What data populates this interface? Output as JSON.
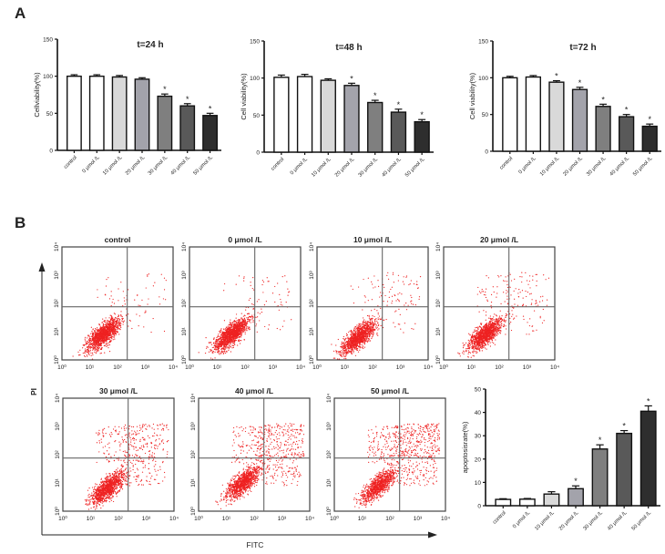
{
  "panel_labels": {
    "a": "A",
    "b": "B"
  },
  "chart_data": [
    {
      "type": "bar",
      "id": "viability-24h",
      "title": "t=24 h",
      "ylabel": "Cellviability(%)",
      "ylim": [
        0,
        150
      ],
      "yticks": [
        0,
        50,
        100,
        150
      ],
      "categories": [
        "control",
        "0 μmol /L",
        "10 μmol /L",
        "20 μmol /L",
        "30 μmol /L",
        "40 μmol /L",
        "50 μmol /L"
      ],
      "values": [
        100,
        100,
        99,
        96,
        73,
        60,
        47
      ],
      "errors": [
        2,
        2,
        2,
        2,
        3,
        3,
        3
      ],
      "significant": [
        false,
        false,
        false,
        false,
        true,
        true,
        true
      ],
      "colors": [
        "#ffffff",
        "#ffffff",
        "#d9d9d9",
        "#a3a3ab",
        "#7f7f7f",
        "#595959",
        "#2e2e2e"
      ]
    },
    {
      "type": "bar",
      "id": "viability-48h",
      "title": "t=48 h",
      "ylabel": "Cell viability(%)",
      "ylim": [
        0,
        150
      ],
      "yticks": [
        0,
        50,
        100,
        150
      ],
      "categories": [
        "control",
        "0 μmol /L",
        "10 μmol /L",
        "20 μmol /L",
        "30 μmol /L",
        "40 μmol /L",
        "50 μmol /L"
      ],
      "values": [
        101,
        102,
        97,
        90,
        67,
        54,
        41
      ],
      "errors": [
        3,
        3,
        2,
        3,
        3,
        4,
        3
      ],
      "significant": [
        false,
        false,
        false,
        true,
        true,
        true,
        true
      ],
      "colors": [
        "#ffffff",
        "#ffffff",
        "#d9d9d9",
        "#a3a3ab",
        "#7f7f7f",
        "#595959",
        "#2e2e2e"
      ]
    },
    {
      "type": "bar",
      "id": "viability-72h",
      "title": "t=72 h",
      "ylabel": "Cell viability(%)",
      "ylim": [
        0,
        150
      ],
      "yticks": [
        0,
        50,
        100,
        150
      ],
      "categories": [
        "control",
        "0 μmol /L",
        "10 μmol /L",
        "20 μmol /L",
        "30 μmol /L",
        "40 μmol /L",
        "50 μmol /L"
      ],
      "values": [
        100,
        101,
        94,
        84,
        61,
        47,
        34
      ],
      "errors": [
        2,
        2,
        2,
        3,
        3,
        3,
        3
      ],
      "significant": [
        false,
        false,
        true,
        true,
        true,
        true,
        true
      ],
      "colors": [
        "#ffffff",
        "#ffffff",
        "#d9d9d9",
        "#a3a3ab",
        "#7f7f7f",
        "#595959",
        "#2e2e2e"
      ]
    },
    {
      "type": "bar",
      "id": "apoptosis-rate",
      "title": "",
      "ylabel": "apoptosisrate(%)",
      "ylim": [
        0,
        50
      ],
      "yticks": [
        0,
        10,
        20,
        30,
        40,
        50
      ],
      "categories": [
        "control",
        "0 μmol /L",
        "10 μmol /L",
        "20 μmol /L",
        "30 μmol /L",
        "40 μmol /L",
        "50 μmol /L"
      ],
      "values": [
        2.7,
        2.8,
        5.0,
        7.3,
        24.3,
        31.0,
        40.5
      ],
      "errors": [
        0.3,
        0.3,
        1.0,
        1.2,
        1.8,
        1.2,
        2.3
      ],
      "significant": [
        false,
        false,
        false,
        true,
        true,
        true,
        true
      ],
      "colors": [
        "#ffffff",
        "#ffffff",
        "#d9d9d9",
        "#a3a3ab",
        "#7f7f7f",
        "#595959",
        "#2e2e2e"
      ]
    },
    {
      "type": "scatter",
      "id": "flow-cytometry",
      "xlabel": "FITC",
      "ylabel": "PI",
      "xlim_log10": [
        0,
        4
      ],
      "ylim_log10": [
        0,
        4
      ],
      "tick_labels": [
        "10⁰",
        "10¹",
        "10²",
        "10³",
        "10⁴"
      ],
      "quadrant_gate_log10": {
        "x": 2.35,
        "y": 1.88
      },
      "point_color": "#ee2222",
      "panels": [
        {
          "title": "control",
          "cluster_center": [
            1.5,
            0.9
          ],
          "cluster_points": 1400,
          "scattered_points": 60
        },
        {
          "title": "0 μmol /L",
          "cluster_center": [
            1.5,
            0.9
          ],
          "cluster_points": 1400,
          "scattered_points": 70
        },
        {
          "title": "10 μmol /L",
          "cluster_center": [
            1.5,
            0.8
          ],
          "cluster_points": 1300,
          "scattered_points": 110
        },
        {
          "title": "20 μmol /L",
          "cluster_center": [
            1.5,
            0.9
          ],
          "cluster_points": 1300,
          "scattered_points": 150
        },
        {
          "title": "30 μmol /L",
          "cluster_center": [
            1.6,
            0.8
          ],
          "cluster_points": 1200,
          "scattered_points": 380
        },
        {
          "title": "40 μmol /L",
          "cluster_center": [
            1.6,
            1.0
          ],
          "cluster_points": 1100,
          "scattered_points": 480
        },
        {
          "title": "50 μmol /L",
          "cluster_center": [
            1.6,
            0.9
          ],
          "cluster_points": 1000,
          "scattered_points": 600
        }
      ]
    }
  ]
}
